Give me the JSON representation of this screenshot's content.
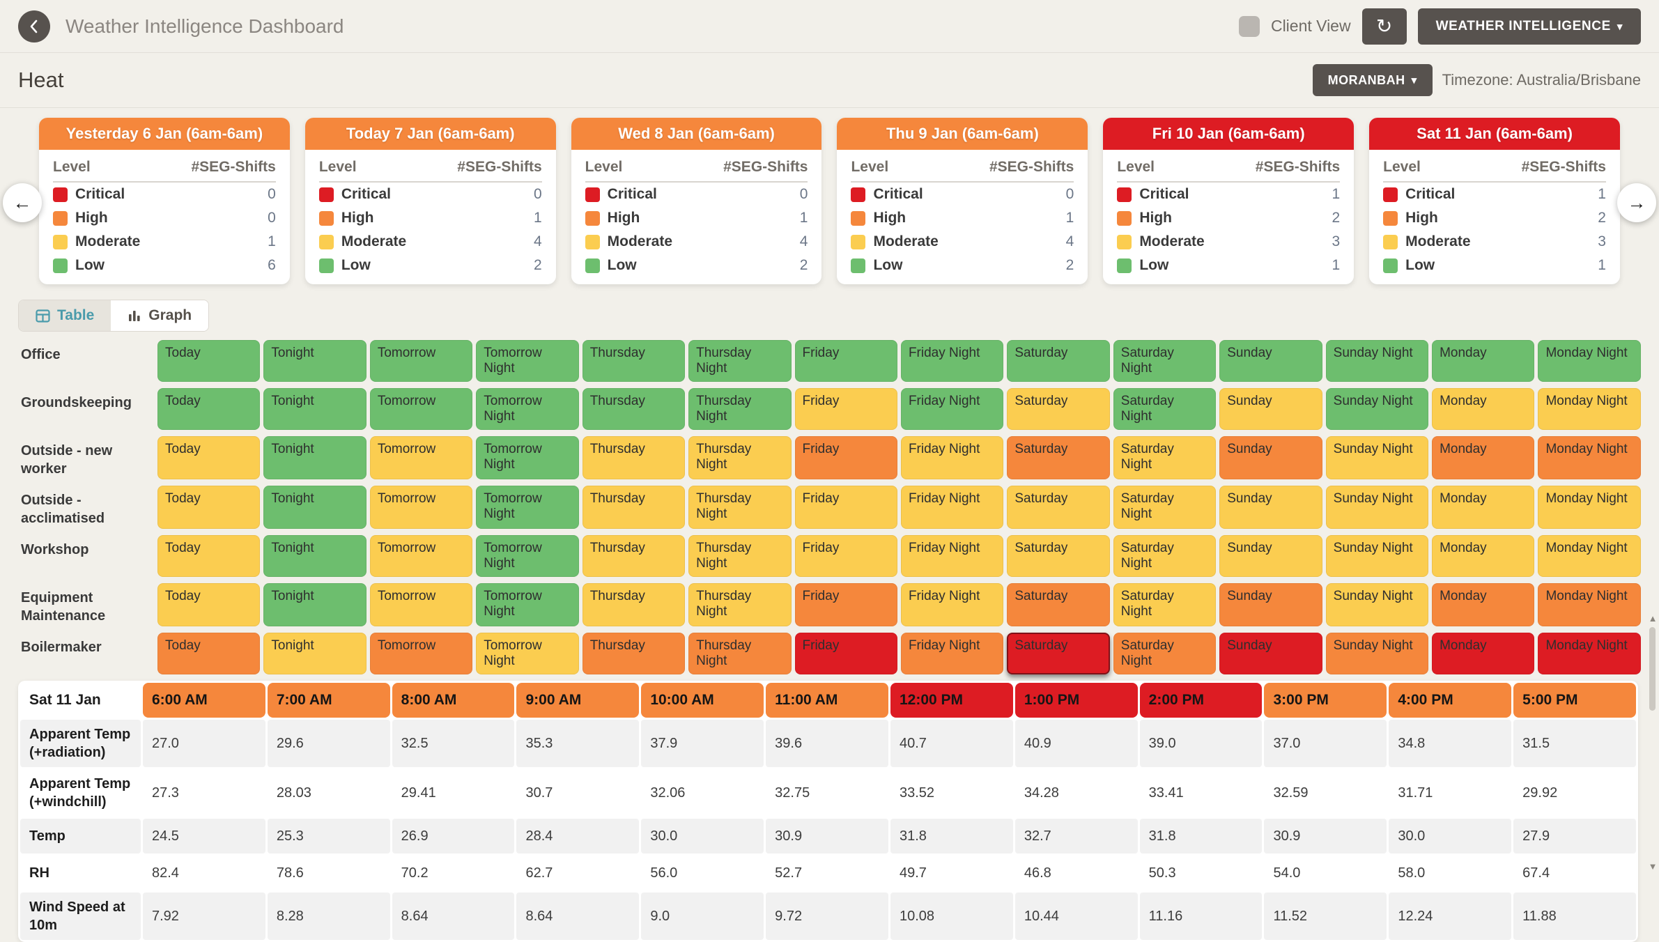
{
  "topbar": {
    "title": "Weather Intelligence Dashboard",
    "client_view_label": "Client View",
    "brand_button": "WEATHER INTELLIGENCE",
    "caret": "▾",
    "refresh_glyph": "↻",
    "back_glyph": "‹"
  },
  "header": {
    "title": "Heat",
    "location_button": "MORANBAH",
    "timezone": "Timezone: Australia/Brisbane"
  },
  "view_toggle": {
    "table_label": "Table",
    "graph_label": "Graph"
  },
  "carousel": {
    "prev_glyph": "←",
    "next_glyph": "→"
  },
  "level_colors": {
    "Critical": "#dd1c23",
    "High": "#f5873c",
    "Moderate": "#fbcd50",
    "Low": "#6dbe6e"
  },
  "day_cards": {
    "columns": {
      "level": "Level",
      "shifts": "#SEG-Shifts"
    },
    "levels_order": [
      "Critical",
      "High",
      "Moderate",
      "Low"
    ],
    "cards": [
      {
        "title": "Yesterday 6 Jan (6am-6am)",
        "header_color": "#f5873c",
        "counts": {
          "Critical": 0,
          "High": 0,
          "Moderate": 1,
          "Low": 6
        }
      },
      {
        "title": "Today 7 Jan (6am-6am)",
        "header_color": "#f5873c",
        "counts": {
          "Critical": 0,
          "High": 1,
          "Moderate": 4,
          "Low": 2
        }
      },
      {
        "title": "Wed 8 Jan (6am-6am)",
        "header_color": "#f5873c",
        "counts": {
          "Critical": 0,
          "High": 1,
          "Moderate": 4,
          "Low": 2
        }
      },
      {
        "title": "Thu 9 Jan (6am-6am)",
        "header_color": "#f5873c",
        "counts": {
          "Critical": 0,
          "High": 1,
          "Moderate": 4,
          "Low": 2
        }
      },
      {
        "title": "Fri 10 Jan (6am-6am)",
        "header_color": "#dd1c23",
        "counts": {
          "Critical": 1,
          "High": 2,
          "Moderate": 3,
          "Low": 1
        }
      },
      {
        "title": "Sat 11 Jan (6am-6am)",
        "header_color": "#dd1c23",
        "counts": {
          "Critical": 1,
          "High": 2,
          "Moderate": 3,
          "Low": 1
        }
      }
    ]
  },
  "seg_grid": {
    "periods": [
      "Today",
      "Tonight",
      "Tomorrow",
      "Tomorrow Night",
      "Thursday",
      "Thursday Night",
      "Friday",
      "Friday Night",
      "Saturday",
      "Saturday Night",
      "Sunday",
      "Sunday Night",
      "Monday",
      "Monday Night"
    ],
    "risk_colors": {
      "low": "#6dbe6e",
      "moderate": "#fbcd50",
      "high": "#f5873c",
      "critical": "#dd1c23"
    },
    "rows": [
      {
        "label": "Office",
        "tall": false,
        "levels": [
          "low",
          "low",
          "low",
          "low",
          "low",
          "low",
          "low",
          "low",
          "low",
          "low",
          "low",
          "low",
          "low",
          "low"
        ]
      },
      {
        "label": "Groundskeeping",
        "tall": false,
        "levels": [
          "low",
          "low",
          "low",
          "low",
          "low",
          "low",
          "moderate",
          "low",
          "moderate",
          "low",
          "moderate",
          "low",
          "moderate",
          "moderate"
        ]
      },
      {
        "label": "Outside - new worker",
        "tall": true,
        "levels": [
          "moderate",
          "low",
          "moderate",
          "low",
          "moderate",
          "moderate",
          "high",
          "moderate",
          "high",
          "moderate",
          "high",
          "moderate",
          "high",
          "high"
        ]
      },
      {
        "label": "Outside - acclimatised",
        "tall": true,
        "levels": [
          "moderate",
          "low",
          "moderate",
          "low",
          "moderate",
          "moderate",
          "moderate",
          "moderate",
          "moderate",
          "moderate",
          "moderate",
          "moderate",
          "moderate",
          "moderate"
        ]
      },
      {
        "label": "Workshop",
        "tall": false,
        "levels": [
          "moderate",
          "low",
          "moderate",
          "low",
          "moderate",
          "moderate",
          "moderate",
          "moderate",
          "moderate",
          "moderate",
          "moderate",
          "moderate",
          "moderate",
          "moderate"
        ]
      },
      {
        "label": "Equipment Maintenance",
        "tall": true,
        "levels": [
          "moderate",
          "low",
          "moderate",
          "low",
          "moderate",
          "moderate",
          "high",
          "moderate",
          "high",
          "moderate",
          "high",
          "moderate",
          "high",
          "high"
        ]
      },
      {
        "label": "Boilermaker",
        "tall": false,
        "selected_index": 8,
        "levels": [
          "high",
          "moderate",
          "high",
          "moderate",
          "high",
          "high",
          "critical",
          "high",
          "critical",
          "high",
          "critical",
          "high",
          "critical",
          "critical"
        ]
      }
    ]
  },
  "hourly_table": {
    "date_label": "Sat 11 Jan",
    "times": [
      {
        "label": "6:00 AM",
        "level": "high"
      },
      {
        "label": "7:00 AM",
        "level": "high"
      },
      {
        "label": "8:00 AM",
        "level": "high"
      },
      {
        "label": "9:00 AM",
        "level": "high"
      },
      {
        "label": "10:00 AM",
        "level": "high"
      },
      {
        "label": "11:00 AM",
        "level": "high"
      },
      {
        "label": "12:00 PM",
        "level": "critical"
      },
      {
        "label": "1:00 PM",
        "level": "critical"
      },
      {
        "label": "2:00 PM",
        "level": "critical"
      },
      {
        "label": "3:00 PM",
        "level": "high"
      },
      {
        "label": "4:00 PM",
        "level": "high"
      },
      {
        "label": "5:00 PM",
        "level": "high"
      }
    ],
    "rows": [
      {
        "label": "Apparent Temp (+radiation)",
        "values": [
          "27.0",
          "29.6",
          "32.5",
          "35.3",
          "37.9",
          "39.6",
          "40.7",
          "40.9",
          "39.0",
          "37.0",
          "34.8",
          "31.5"
        ]
      },
      {
        "label": "Apparent Temp (+windchill)",
        "values": [
          "27.3",
          "28.03",
          "29.41",
          "30.7",
          "32.06",
          "32.75",
          "33.52",
          "34.28",
          "33.41",
          "32.59",
          "31.71",
          "29.92"
        ]
      },
      {
        "label": "Temp",
        "values": [
          "24.5",
          "25.3",
          "26.9",
          "28.4",
          "30.0",
          "30.9",
          "31.8",
          "32.7",
          "31.8",
          "30.9",
          "30.0",
          "27.9"
        ]
      },
      {
        "label": "RH",
        "values": [
          "82.4",
          "78.6",
          "70.2",
          "62.7",
          "56.0",
          "52.7",
          "49.7",
          "46.8",
          "50.3",
          "54.0",
          "58.0",
          "67.4"
        ]
      },
      {
        "label": "Wind Speed at 10m",
        "values": [
          "7.92",
          "8.28",
          "8.64",
          "8.64",
          "9.0",
          "9.72",
          "10.08",
          "10.44",
          "11.16",
          "11.52",
          "12.24",
          "11.88"
        ]
      }
    ]
  },
  "scrollbar": {
    "up_glyph": "▲",
    "down_glyph": "▼"
  }
}
